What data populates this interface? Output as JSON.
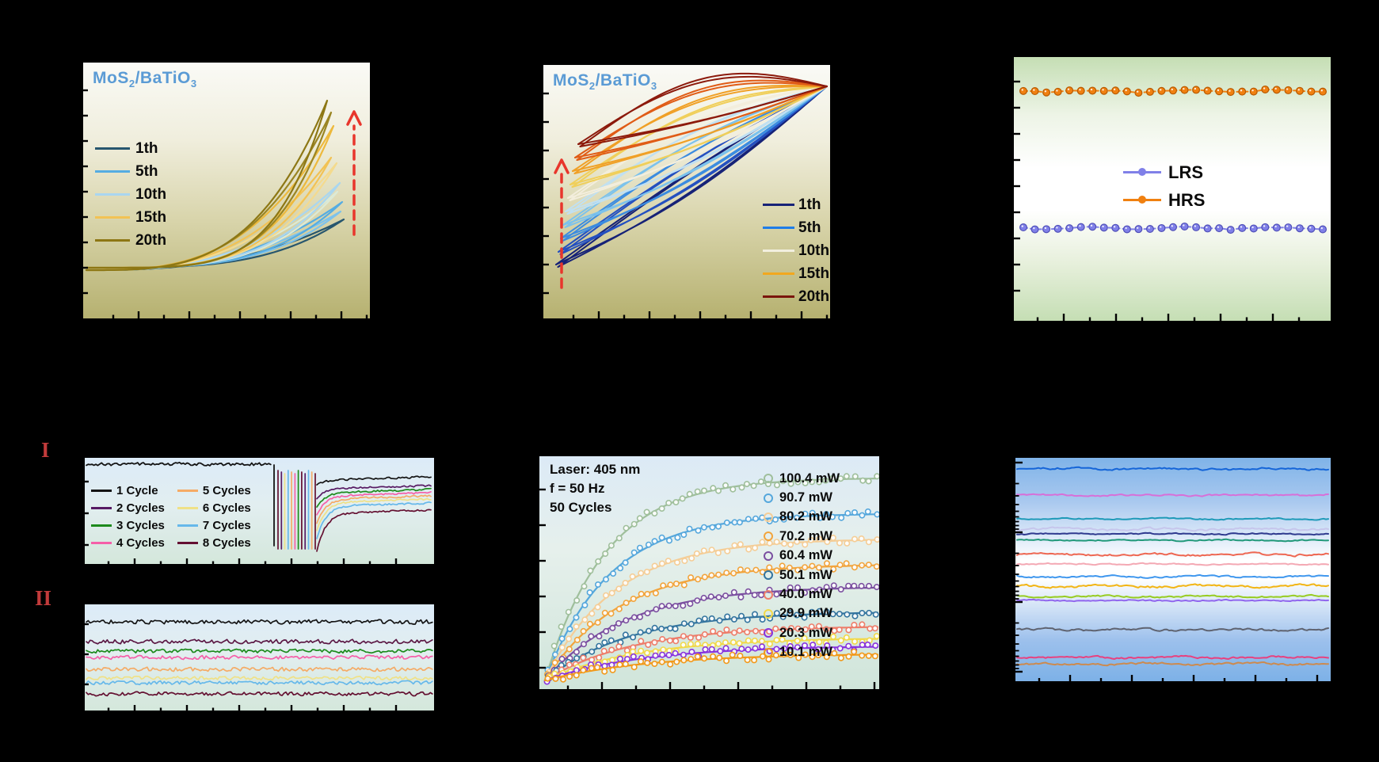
{
  "figure": {
    "background": "#000000",
    "material_label": {
      "prefix": "MoS",
      "sub1": "2",
      "mid": "/BaTiO",
      "sub2": "3"
    },
    "title_color": "#5b9bd5",
    "arrow_color": "#e8362c",
    "tick_color": "#000000"
  },
  "panel_a": {
    "legend": [
      {
        "label": "1th",
        "color": "#27566e"
      },
      {
        "label": "5th",
        "color": "#55ace2"
      },
      {
        "label": "10th",
        "color": "#a9d6f0"
      },
      {
        "label": "15th",
        "color": "#f2c254"
      },
      {
        "label": "20th",
        "color": "#8d7714"
      }
    ]
  },
  "panel_b": {
    "legend": [
      {
        "label": "1th",
        "color": "#162277"
      },
      {
        "label": "5th",
        "color": "#1f7de8"
      },
      {
        "label": "10th",
        "color": "#f2efdf"
      },
      {
        "label": "15th",
        "color": "#f2a81e"
      },
      {
        "label": "20th",
        "color": "#7a150c"
      }
    ]
  },
  "panel_c": {
    "legend": [
      {
        "label": "LRS",
        "color": "#8080e8"
      },
      {
        "label": "HRS",
        "color": "#f08010"
      }
    ]
  },
  "panel_d": {
    "label_i": "I",
    "label_ii": "II",
    "label_color": "#c23b3b",
    "legend": [
      {
        "label": "1 Cycle",
        "color": "#141414"
      },
      {
        "label": "2 Cycles",
        "color": "#571a63"
      },
      {
        "label": "3 Cycles",
        "color": "#1c8a1c"
      },
      {
        "label": "4 Cycles",
        "color": "#f55fa8"
      },
      {
        "label": "5 Cycles",
        "color": "#f5ab66"
      },
      {
        "label": "6 Cycles",
        "color": "#efe187"
      },
      {
        "label": "7 Cycles",
        "color": "#66b8ea"
      },
      {
        "label": "8 Cycles",
        "color": "#641031"
      }
    ]
  },
  "panel_e": {
    "annotations": [
      "Laser: 405 nm",
      "f = 50 Hz",
      "50 Cycles"
    ],
    "legend": [
      {
        "label": "100.4 mW",
        "color": "#9fbf9b"
      },
      {
        "label": "90.7 mW",
        "color": "#55a7dc"
      },
      {
        "label": "80.2 mW",
        "color": "#f5cd96"
      },
      {
        "label": "70.2 mW",
        "color": "#f2a43c"
      },
      {
        "label": "60.4 mW",
        "color": "#7b4fa0"
      },
      {
        "label": "50.1 mW",
        "color": "#33749f"
      },
      {
        "label": "40.0 mW",
        "color": "#ee7d6a"
      },
      {
        "label": "29.9 mW",
        "color": "#f2d949"
      },
      {
        "label": "20.3 mW",
        "color": "#8833dd"
      },
      {
        "label": "10.1 mW",
        "color": "#f2991a"
      }
    ]
  },
  "chart_data": [
    {
      "id": "a",
      "type": "line",
      "panel": "top-left",
      "title": "MoS2/BaTiO3",
      "description": "I-V hysteresis sweep loops for cycles 1,5,10,15,20; current rises with cycle number (red dashed arrow). Axis tick labels are not visible (black on black).",
      "legend": [
        "1th",
        "5th",
        "10th",
        "15th",
        "20th"
      ],
      "baseline": [
        4,
        259
      ],
      "loops": [
        {
          "series": "1th",
          "color": "#27566e",
          "tip": [
            329,
            198
          ],
          "pf": 3.6,
          "pr": 2.6
        },
        {
          "series": "5th-b",
          "color": "#7cc2ec",
          "tip": [
            325,
            188
          ],
          "pf": 3.6,
          "pr": 2.6
        },
        {
          "series": "5th",
          "color": "#55ace2",
          "tip": [
            327,
            176
          ],
          "pf": 3.7,
          "pr": 2.7
        },
        {
          "series": "10th-b",
          "color": "#dcead6",
          "tip": [
            321,
            163
          ],
          "pf": 3.8,
          "pr": 2.8
        },
        {
          "series": "10th",
          "color": "#a9d6f0",
          "tip": [
            324,
            152
          ],
          "pf": 3.8,
          "pr": 2.8
        },
        {
          "series": "15th-c",
          "color": "#f4da8e",
          "tip": [
            320,
            127
          ],
          "pf": 4.0,
          "pr": 2.9
        },
        {
          "series": "15th-b",
          "color": "#f2c254",
          "tip": [
            313,
            120
          ],
          "pf": 4.1,
          "pr": 2.9
        },
        {
          "series": "15th",
          "color": "#edb93c",
          "tip": [
            316,
            80
          ],
          "pf": 4.3,
          "pr": 3.0
        },
        {
          "series": "20th-b",
          "color": "#9a8523",
          "tip": [
            313,
            63
          ],
          "pf": 4.6,
          "pr": 3.2
        },
        {
          "series": "20th",
          "color": "#8d7714",
          "tip": [
            308,
            48
          ],
          "pf": 4.9,
          "pr": 3.4
        }
      ],
      "arrow": {
        "x": 342,
        "y_from": 217,
        "y_to": 62
      }
    },
    {
      "id": "b",
      "type": "line",
      "panel": "top-middle",
      "title": "MoS2/BaTiO3",
      "description": "Fan of hysteresis branches for cycles 1-20 converging at top right; state rises with cycle number (red dashed arrow). Axis tick labels not visible.",
      "legend": [
        "1th",
        "5th",
        "10th",
        "15th",
        "20th"
      ],
      "right_anchor": [
        358,
        27
      ],
      "fans": [
        {
          "color": "#162277",
          "left": [
            16,
            252
          ],
          "bulge": 6,
          "sag": 22
        },
        {
          "color": "#2450c0",
          "left": [
            19,
            236
          ],
          "bulge": 10,
          "sag": 21
        },
        {
          "color": "#3c8ce0",
          "left": [
            22,
            219
          ],
          "bulge": 14,
          "sag": 20
        },
        {
          "color": "#7cc2ec",
          "left": [
            25,
            202
          ],
          "bulge": 18,
          "sag": 18
        },
        {
          "color": "#c0e0f2",
          "left": [
            28,
            185
          ],
          "bulge": 22,
          "sag": 16
        },
        {
          "color": "#f3eedd",
          "left": [
            31,
            168
          ],
          "bulge": 26,
          "sag": 14
        },
        {
          "color": "#f0cf5a",
          "left": [
            34,
            151
          ],
          "bulge": 30,
          "sag": 12
        },
        {
          "color": "#f0a026",
          "left": [
            37,
            134
          ],
          "bulge": 34,
          "sag": 10
        },
        {
          "color": "#e05c16",
          "left": [
            40,
            117
          ],
          "bulge": 38,
          "sag": 8
        },
        {
          "color": "#8c1a0c",
          "left": [
            44,
            100
          ],
          "bulge": 42,
          "sag": 6
        }
      ],
      "arrow": {
        "x": 23,
        "y_from": 281,
        "y_to": 120
      }
    },
    {
      "id": "c",
      "type": "line-markers",
      "panel": "top-right",
      "description": "Retention: HRS (orange) and LRS (blue) resistance states remain flat across the sweep; ~27 data points each. Axis tick labels not visible.",
      "x_range": [
        12,
        390
      ],
      "points": 27,
      "series": [
        {
          "name": "HRS",
          "color": "#f08010",
          "edge": "#b85a00",
          "y": 43
        },
        {
          "name": "LRS",
          "color": "#8080e8",
          "edge": "#5050b8",
          "y": 216
        }
      ]
    },
    {
      "id": "dI",
      "type": "line",
      "panel": "bottom-left-I",
      "description": "Sub-panel I: high initial level, abrupt drop followed by a pulse train, then 8 recovering levels ordered by cycle count (1 Cycle highest, 8 Cycles lowest).",
      "initial_level_y": 8,
      "pre_x": [
        2,
        237
      ],
      "drop_x": 239,
      "pulse_x": [
        244,
        291
      ],
      "pulse_y": [
        16,
        115
      ],
      "pulse_count": 12,
      "post_x": [
        293,
        439
      ],
      "post_levels": [
        {
          "series": "1 Cycle",
          "color": "#141414",
          "y": 28
        },
        {
          "series": "2 Cycles",
          "color": "#571a63",
          "y": 39
        },
        {
          "series": "3 Cycles",
          "color": "#1c8a1c",
          "y": 44
        },
        {
          "series": "4 Cycles",
          "color": "#f55fa8",
          "y": 48
        },
        {
          "series": "5 Cycles",
          "color": "#f5ab66",
          "y": 52
        },
        {
          "series": "6 Cycles",
          "color": "#efe187",
          "y": 56
        },
        {
          "series": "7 Cycles",
          "color": "#66b8ea",
          "y": 61
        },
        {
          "series": "8 Cycles",
          "color": "#641031",
          "y": 70
        }
      ]
    },
    {
      "id": "dII",
      "type": "line",
      "panel": "bottom-left-II",
      "description": "Sub-panel II: eight flat noisy retention traces stacked by cycle count.",
      "x_range": [
        2,
        439
      ],
      "traces": [
        {
          "series": "1 Cycle",
          "color": "#141414",
          "y": 22,
          "amp": 3.2
        },
        {
          "series": "2 Cycles",
          "color": "#5c1945",
          "y": 47,
          "amp": 3.2
        },
        {
          "series": "3 Cycles",
          "color": "#1c8a1c",
          "y": 59,
          "amp": 2.8
        },
        {
          "series": "4 Cycles",
          "color": "#f55fa8",
          "y": 67,
          "amp": 2.8
        },
        {
          "series": "5 Cycles",
          "color": "#f5ab66",
          "y": 82,
          "amp": 3.0
        },
        {
          "series": "6 Cycles",
          "color": "#efe187",
          "y": 93,
          "amp": 2.6
        },
        {
          "series": "7 Cycles",
          "color": "#66b8ea",
          "y": 99,
          "amp": 2.8
        },
        {
          "series": "8 Cycles",
          "color": "#641031",
          "y": 113,
          "amp": 3.0
        }
      ]
    },
    {
      "id": "e",
      "type": "scatter-line",
      "panel": "bottom-middle",
      "description": "Photoresponse saturation curves vs laser power (405 nm, 50 Hz, 50 cycles); open-circle data with fitted lines; higher power saturates higher.",
      "powers_mW": [
        100.4,
        90.7,
        80.2,
        70.2,
        60.4,
        50.1,
        40.0,
        29.9,
        20.3,
        10.1
      ],
      "origin": [
        7,
        283
      ],
      "levels": [
        27,
        72,
        104,
        136,
        164,
        196,
        214,
        229,
        239,
        249
      ],
      "k": [
        5.5,
        5.2,
        4.8,
        4.5,
        4.2,
        4.0,
        3.8,
        3.6,
        3.4,
        3.2
      ],
      "colors": [
        "#9fbf9b",
        "#55a7dc",
        "#f5cd96",
        "#f2a43c",
        "#7b4fa0",
        "#33749f",
        "#ee7d6a",
        "#f2d949",
        "#8833dd",
        "#f2991a"
      ]
    },
    {
      "id": "f",
      "type": "line",
      "panel": "bottom-right",
      "description": "Fifteen stable multilevel states: flat noisy traces on a log-like axis (dense left ticks).",
      "x_range": [
        2,
        396
      ],
      "traces": [
        {
          "color": "#1565d8",
          "y": 14,
          "amp": 2.4
        },
        {
          "color": "#d86fd8",
          "y": 47,
          "amp": 1.8
        },
        {
          "color": "#1f9ab8",
          "y": 77,
          "amp": 1.4
        },
        {
          "color": "#c6c6ec",
          "y": 90,
          "amp": 2.4
        },
        {
          "color": "#2f3a8f",
          "y": 96,
          "amp": 1.6
        },
        {
          "color": "#22997a",
          "y": 104,
          "amp": 1.5
        },
        {
          "color": "#ee6752",
          "y": 122,
          "amp": 2.4
        },
        {
          "color": "#f4a9b4",
          "y": 134,
          "amp": 1.5
        },
        {
          "color": "#3f97ee",
          "y": 150,
          "amp": 2.0
        },
        {
          "color": "#f2b514",
          "y": 162,
          "amp": 2.8
        },
        {
          "color": "#98cc22",
          "y": 175,
          "amp": 2.0
        },
        {
          "color": "#9066ee",
          "y": 180,
          "amp": 1.6
        },
        {
          "color": "#5f6370",
          "y": 217,
          "amp": 2.4
        },
        {
          "color": "#e8417f",
          "y": 252,
          "amp": 2.4
        },
        {
          "color": "#cc8a4f",
          "y": 260,
          "amp": 2.4
        }
      ]
    }
  ]
}
